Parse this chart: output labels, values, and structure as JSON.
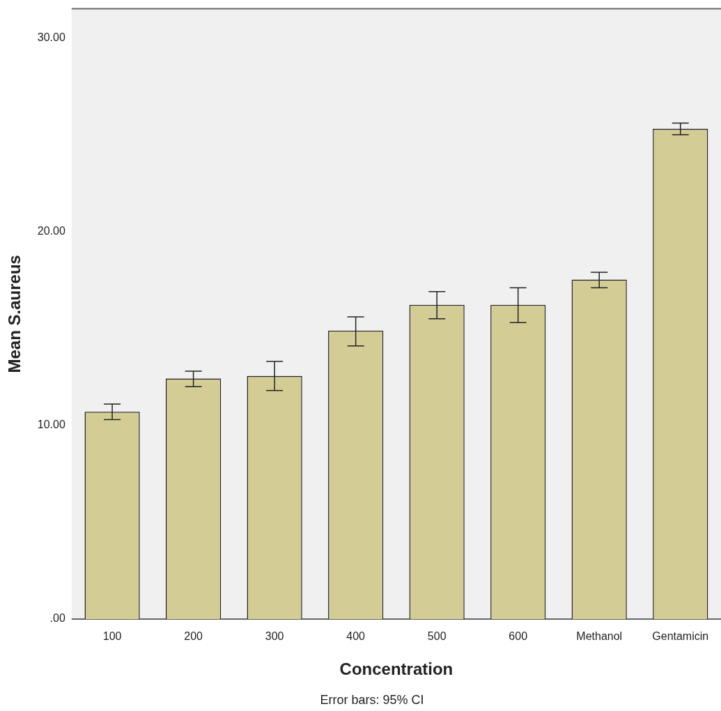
{
  "chart_data": {
    "type": "bar",
    "xlabel": "Concentration",
    "ylabel": "Mean S.aureus",
    "annotations": [
      "Error bars: 95% CI"
    ],
    "categories": [
      "100",
      "200",
      "300",
      "400",
      "500",
      "600",
      "Methanol",
      "Gentamicin"
    ],
    "values": [
      10.7,
      12.42,
      12.54,
      14.89,
      16.22,
      16.22,
      17.52,
      25.3
    ],
    "errors": [
      [
        10.3,
        11.1
      ],
      [
        12.0,
        12.8
      ],
      [
        11.8,
        13.3
      ],
      [
        14.1,
        15.6
      ],
      [
        15.5,
        16.9
      ],
      [
        15.3,
        17.1
      ],
      [
        17.1,
        17.9
      ],
      [
        25.0,
        25.6
      ]
    ],
    "color": "#d3cd95",
    "ylim": [
      0,
      31.5
    ],
    "yticks": [
      {
        "value": 0,
        "label": ".00"
      },
      {
        "value": 10,
        "label": "10.00"
      },
      {
        "value": 20,
        "label": "20.00"
      },
      {
        "value": 30,
        "label": "30.00"
      }
    ],
    "grid": false,
    "legend": false
  }
}
